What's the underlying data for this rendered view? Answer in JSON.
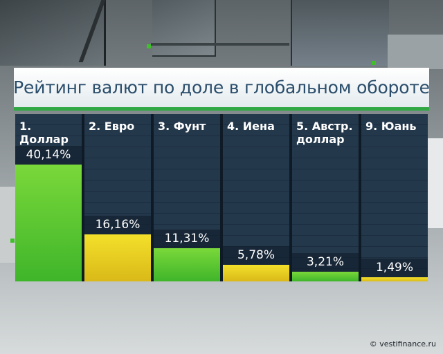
{
  "chart_data": {
    "type": "bar",
    "title": "Рейтинг валют по доле в глобальном обороте",
    "categories": [
      "1. Доллар",
      "2. Евро",
      "3. Фунт",
      "4. Иена",
      "5. Австр. доллар",
      "9. Юань"
    ],
    "values": [
      40.14,
      16.16,
      11.31,
      5.78,
      3.21,
      1.49
    ],
    "value_labels": [
      "40,14%",
      "16,16%",
      "11,31%",
      "5,78%",
      "3,21%",
      "1,49%"
    ],
    "bar_colors": [
      "#5ac832",
      "#f0d22a",
      "#5ac832",
      "#f0d22a",
      "#5ac832",
      "#f0d22a"
    ],
    "ylim": [
      0,
      55
    ],
    "xlabel": "",
    "ylabel": "",
    "grid": false
  },
  "watermark": "© vestifinance.ru",
  "colors": {
    "accent": "#32a845",
    "title_text": "#2a4d6b",
    "panel": "#0e1a26"
  }
}
